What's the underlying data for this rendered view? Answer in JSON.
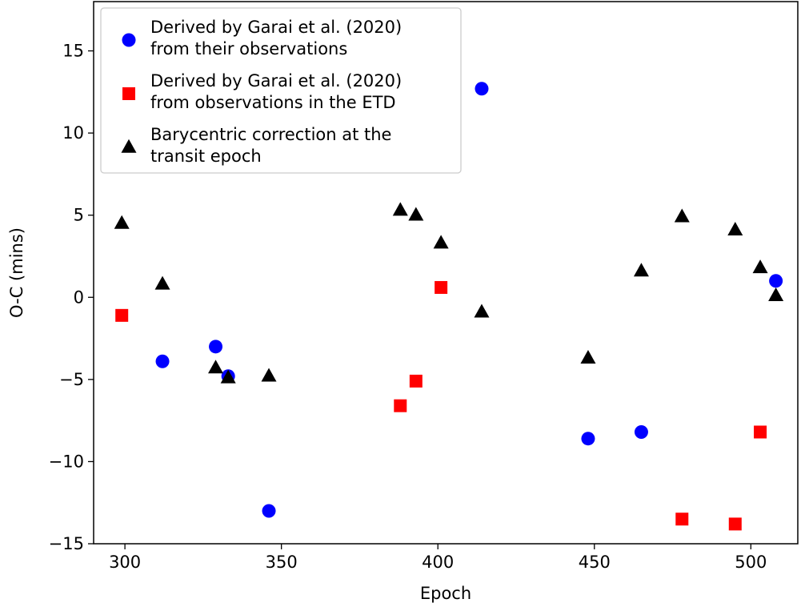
{
  "chart_data": {
    "type": "scatter",
    "title": "",
    "xlabel": "Epoch",
    "ylabel": "O-C (mins)",
    "xlim": [
      290,
      515
    ],
    "ylim": [
      -15,
      18
    ],
    "xticks": [
      300,
      350,
      400,
      450,
      500
    ],
    "yticks": [
      -15,
      -10,
      -5,
      0,
      5,
      10,
      15
    ],
    "grid": false,
    "legend_position": "top-left",
    "series": [
      {
        "name": "Derived by Garai et al. (2020) from their observations",
        "legend_lines": [
          "Derived by Garai et al. (2020)",
          "from their observations"
        ],
        "marker": "circle",
        "color": "#0000ff",
        "points": [
          [
            312,
            -3.9
          ],
          [
            329,
            -3.0
          ],
          [
            333,
            -4.8
          ],
          [
            346,
            -13.0
          ],
          [
            414,
            12.7
          ],
          [
            448,
            -8.6
          ],
          [
            465,
            -8.2
          ],
          [
            508,
            1.0
          ]
        ]
      },
      {
        "name": "Derived by Garai et al. (2020) from observations in the ETD",
        "legend_lines": [
          "Derived by Garai et al. (2020)",
          "from observations in the ETD"
        ],
        "marker": "square",
        "color": "#ff0000",
        "points": [
          [
            299,
            -1.1
          ],
          [
            388,
            -6.6
          ],
          [
            393,
            -5.1
          ],
          [
            401,
            0.6
          ],
          [
            478,
            -13.5
          ],
          [
            495,
            -13.8
          ],
          [
            503,
            -8.2
          ]
        ]
      },
      {
        "name": "Barycentric correction at the transit epoch",
        "legend_lines": [
          "Barycentric correction at the",
          "transit epoch"
        ],
        "marker": "triangle",
        "color": "#000000",
        "points": [
          [
            299,
            4.5
          ],
          [
            312,
            0.8
          ],
          [
            329,
            -4.3
          ],
          [
            333,
            -4.9
          ],
          [
            346,
            -4.8
          ],
          [
            388,
            5.3
          ],
          [
            393,
            5.0
          ],
          [
            401,
            3.3
          ],
          [
            414,
            -0.9
          ],
          [
            448,
            -3.7
          ],
          [
            465,
            1.6
          ],
          [
            478,
            4.9
          ],
          [
            495,
            4.1
          ],
          [
            503,
            1.8
          ],
          [
            508,
            0.1
          ]
        ]
      }
    ]
  }
}
